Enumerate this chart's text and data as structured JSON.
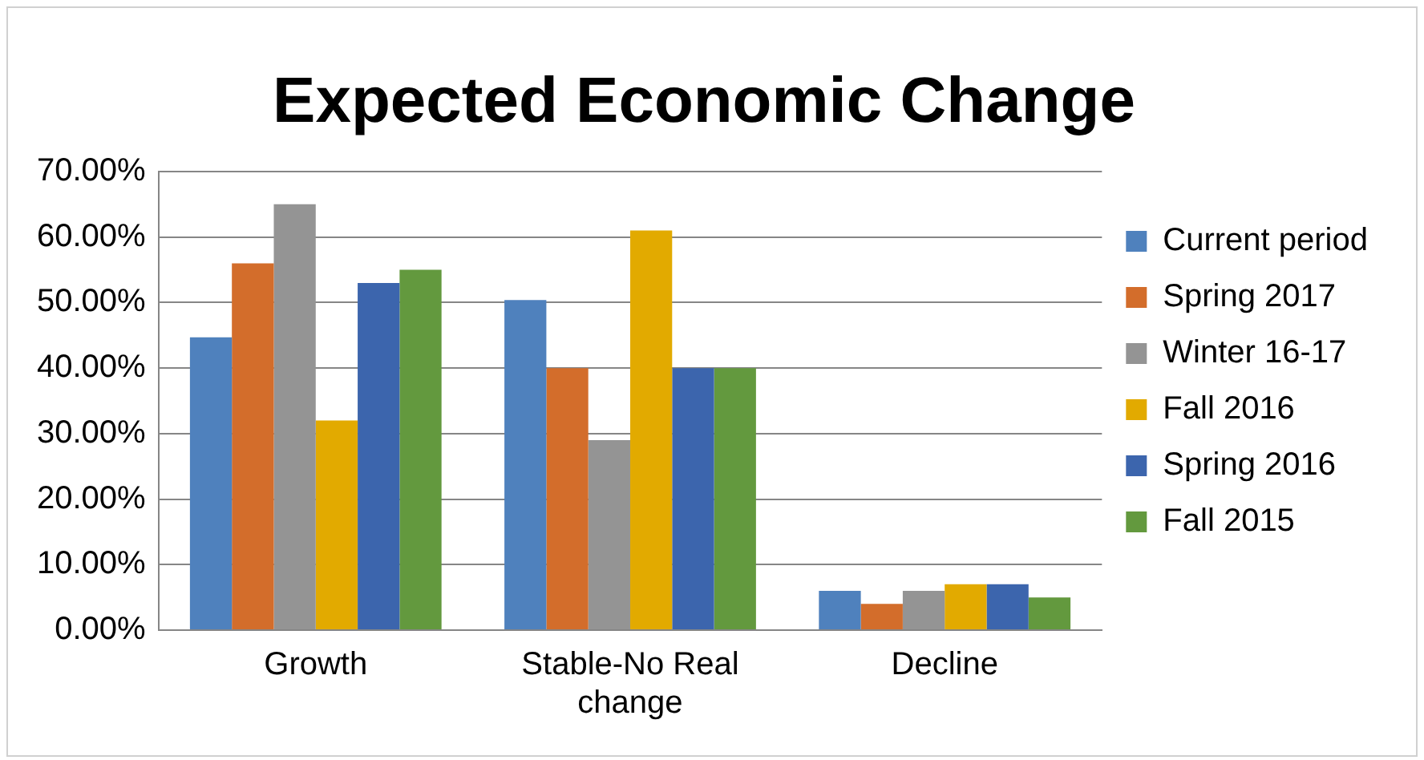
{
  "chart_data": {
    "type": "bar",
    "title": "Expected Economic Change",
    "categories": [
      "Growth",
      "Stable-No Real change",
      "Decline"
    ],
    "series": [
      {
        "name": "Current period",
        "color": "#4f81bd",
        "values": [
          44.7,
          50.4,
          6
        ]
      },
      {
        "name": "Spring 2017",
        "color": "#d36d2b",
        "values": [
          56,
          40,
          4
        ]
      },
      {
        "name": "Winter 16-17",
        "color": "#949494",
        "values": [
          65,
          29,
          6
        ]
      },
      {
        "name": "Fall 2016",
        "color": "#e2aa00",
        "values": [
          32,
          61,
          7
        ]
      },
      {
        "name": "Spring 2016",
        "color": "#3c65ad",
        "values": [
          53,
          40,
          7
        ]
      },
      {
        "name": "Fall 2015",
        "color": "#63993e",
        "values": [
          55,
          40,
          5
        ]
      }
    ],
    "ylim": [
      0,
      70
    ],
    "yticks": [
      {
        "value": 0,
        "label": "0.00%"
      },
      {
        "value": 10,
        "label": "10.00%"
      },
      {
        "value": 20,
        "label": "20.00%"
      },
      {
        "value": 30,
        "label": "30.00%"
      },
      {
        "value": 40,
        "label": "40.00%"
      },
      {
        "value": 50,
        "label": "50.00%"
      },
      {
        "value": 60,
        "label": "60.00%"
      },
      {
        "value": 70,
        "label": "70.00%"
      }
    ],
    "grid": "y",
    "legend": "right"
  }
}
